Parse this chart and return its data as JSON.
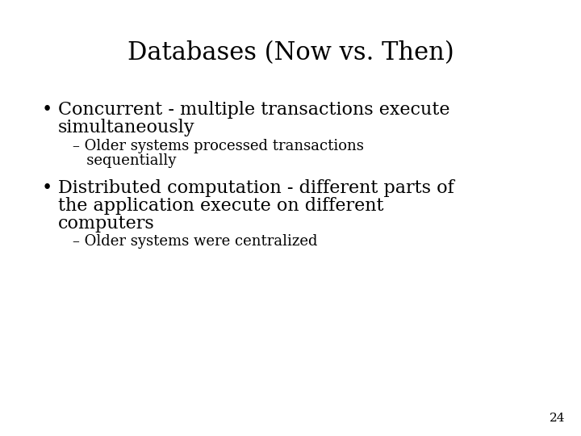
{
  "title": "Databases (Now vs. Then)",
  "background_color": "#ffffff",
  "text_color": "#000000",
  "title_fontsize": 22,
  "title_font": "DejaVu Serif",
  "body_fontsize": 16,
  "sub_fontsize": 13,
  "page_number": "24",
  "page_fontsize": 11,
  "bullet1_line1": "Concurrent - multiple transactions execute",
  "bullet1_line2": "simultaneously",
  "sub1_line1": "– Older systems processed transactions",
  "sub1_line2": "   sequentially",
  "bullet2_line1": "Distributed computation - different parts of",
  "bullet2_line2": "the application execute on different",
  "bullet2_line3": "computers",
  "sub2": "– Older systems were centralized"
}
